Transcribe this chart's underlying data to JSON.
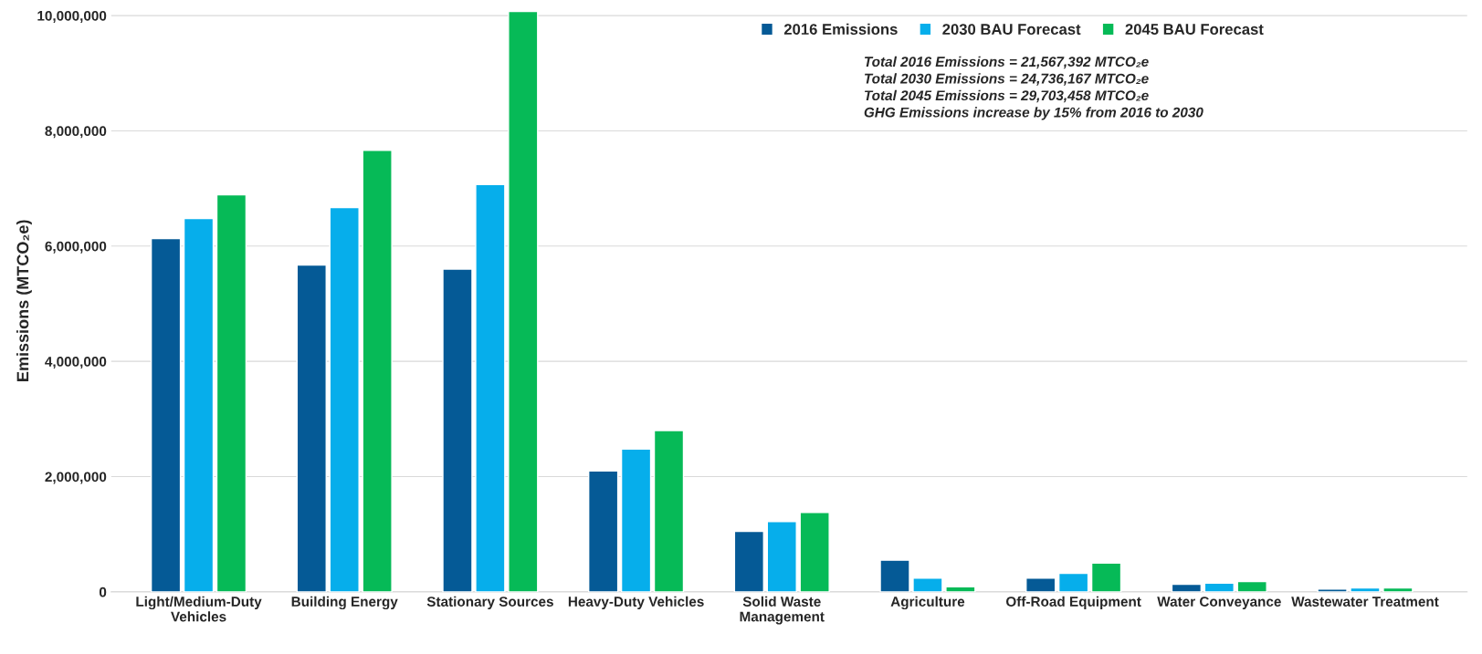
{
  "chart_data": {
    "type": "bar",
    "ylabel": "Emissions (MTCO₂e)",
    "categories": [
      "Light/Medium-Duty\nVehicles",
      "Building Energy",
      "Stationary Sources",
      "Heavy-Duty Vehicles",
      "Solid Waste\nManagement",
      "Agriculture",
      "Off-Road Equipment",
      "Water Conveyance",
      "Wastewater Treatment"
    ],
    "series": [
      {
        "name": "2016 Emissions",
        "color": "#055a96",
        "values": [
          6130000,
          5670000,
          5600000,
          2100000,
          1050000,
          550000,
          240000,
          130000,
          50000
        ]
      },
      {
        "name": "2030 BAU Forecast",
        "color": "#06aeeb",
        "values": [
          6480000,
          6670000,
          7070000,
          2480000,
          1220000,
          240000,
          320000,
          150000,
          70000
        ]
      },
      {
        "name": "2045 BAU Forecast",
        "color": "#06ba57",
        "values": [
          6890000,
          7660000,
          10070000,
          2800000,
          1380000,
          90000,
          500000,
          180000,
          70000
        ]
      }
    ],
    "ylim": [
      0,
      10100000
    ],
    "yticks": [
      {
        "value": 0,
        "label": "0"
      },
      {
        "value": 2000000,
        "label": "2,000,000"
      },
      {
        "value": 4000000,
        "label": "4,000,000"
      },
      {
        "value": 6000000,
        "label": "6,000,000"
      },
      {
        "value": 8000000,
        "label": "8,000,000"
      },
      {
        "value": 10000000,
        "label": "10,000,000"
      }
    ],
    "grid": "y",
    "legend": "top right",
    "annotations": [
      "Total 2016 Emissions = 21,567,392 MTCO₂e",
      "Total 2030 Emissions = 24,736,167 MTCO₂e",
      "Total 2045 Emissions = 29,703,458 MTCO₂e",
      "GHG Emissions increase by 15% from 2016 to 2030"
    ]
  }
}
